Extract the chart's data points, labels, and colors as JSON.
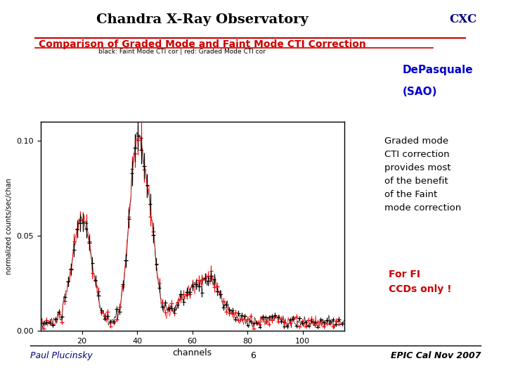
{
  "title": "Chandra X-Ray Observatory",
  "cxc_label": "CXC",
  "subtitle": "Comparison of Graded Mode and Faint Mode CTI Correction",
  "legend_text": "black: Faint Mode CTI cor | red: Graded Mode CTI cor",
  "xlabel": "channels",
  "ylabel": "normalized counts/sec/chan",
  "right_text1": "DePasquale",
  "right_text2": "(SAO)",
  "right_text3": "Graded mode\nCTI correction\nprovides most\nof the benefit\nof the Faint\nmode correction",
  "right_text4": "For FI\nCCDs only !",
  "footer_left": "Paul Plucinsky",
  "footer_center": "6",
  "footer_right": "EPIC Cal Nov 2007",
  "bg_color": "#ffffff",
  "title_color": "#000000",
  "subtitle_color": "#cc0000",
  "cxc_color": "#000080",
  "right1_color": "#0000cc",
  "right2_color": "#0000cc",
  "right3_color": "#000000",
  "right4_color": "#cc0000",
  "footer_left_color": "#000080",
  "footer_right_color": "#000000"
}
